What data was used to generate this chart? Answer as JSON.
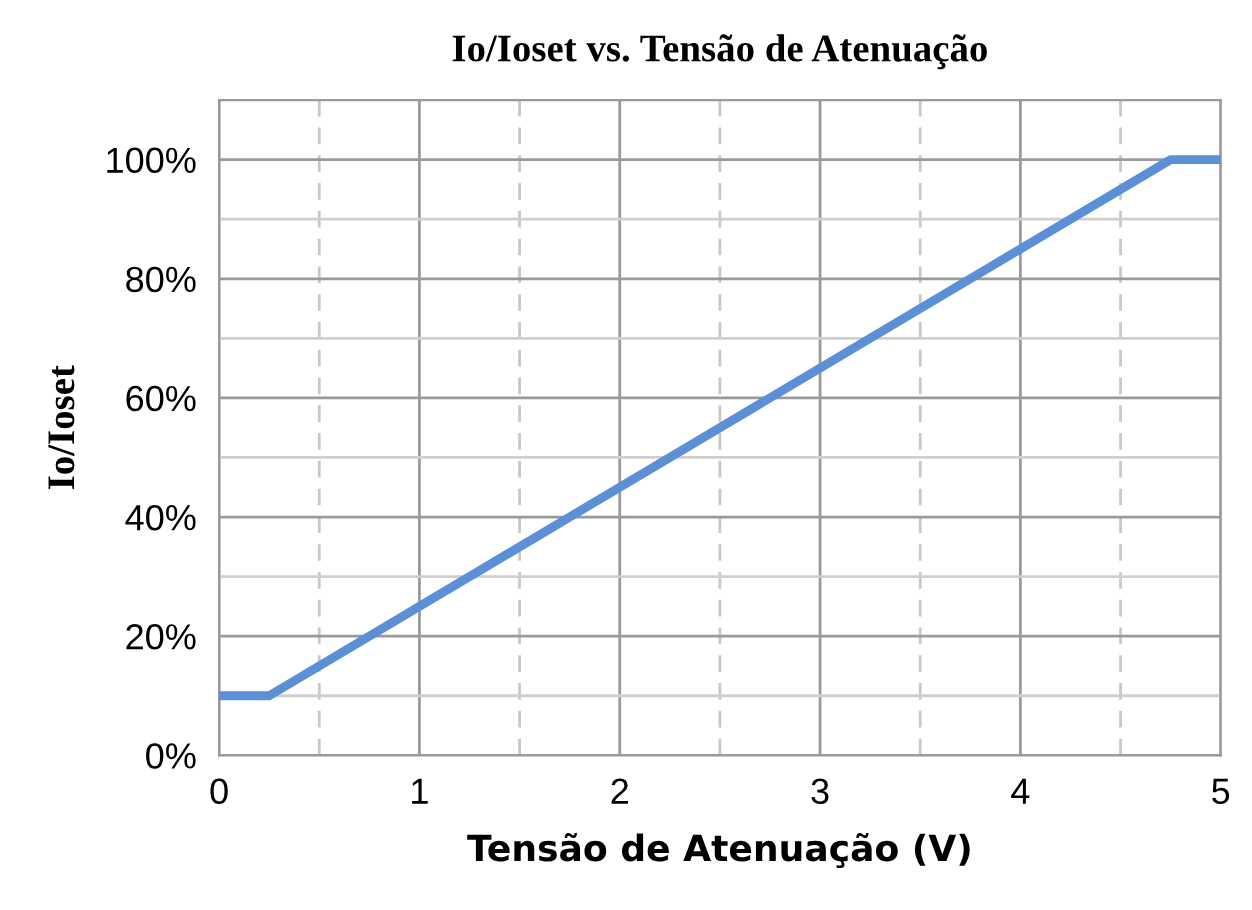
{
  "chart_data": {
    "type": "line",
    "title": "Io/Ioset vs. Tensão de Atenuação",
    "xlabel": "Tensão de Atenuação (V)",
    "ylabel": "Io/Ioset",
    "x": [
      0,
      0.25,
      4.75,
      5
    ],
    "series": [
      {
        "color": "#5b8fd6",
        "values": [
          10,
          10,
          100,
          100
        ]
      }
    ],
    "xlim": [
      0,
      5
    ],
    "ylim": [
      0,
      110
    ],
    "xticks": [
      0,
      {
        "value": 0.5,
        "label": null
      },
      1,
      {
        "value": 1.5,
        "label": null
      },
      2,
      {
        "value": 2.5,
        "label": null
      },
      3,
      {
        "value": 3.5,
        "label": null
      },
      4,
      {
        "value": 4.5,
        "label": null
      },
      5
    ],
    "yticks": [
      {
        "value": 0,
        "label": "0%"
      },
      {
        "value": 10,
        "label": null
      },
      {
        "value": 20,
        "label": "20%"
      },
      {
        "value": 30,
        "label": null
      },
      {
        "value": 40,
        "label": "40%"
      },
      {
        "value": 50,
        "label": null
      },
      {
        "value": 60,
        "label": "60%"
      },
      {
        "value": 70,
        "label": null
      },
      {
        "value": 80,
        "label": "80%"
      },
      {
        "value": 90,
        "label": null
      },
      {
        "value": 100,
        "label": "100%"
      }
    ],
    "grid": true,
    "marker": "none",
    "line_style": "solid"
  }
}
